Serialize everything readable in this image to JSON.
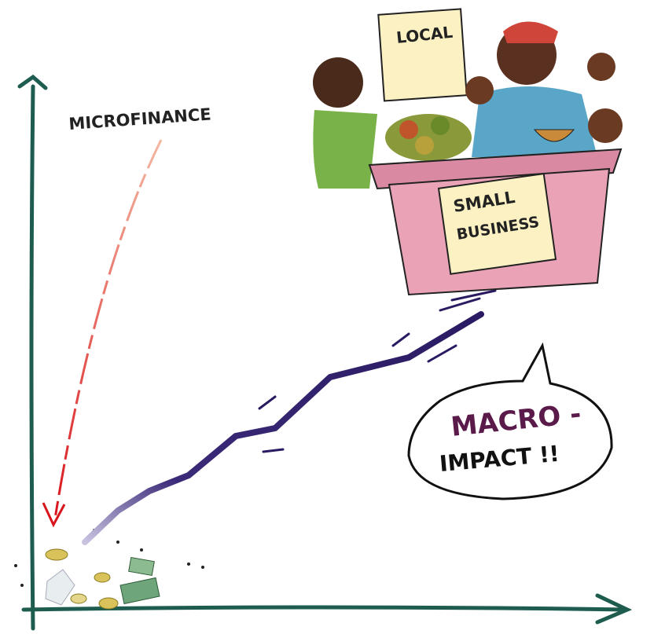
{
  "labels": {
    "arrow": "MICROFINANCE",
    "sign": "LOCAL",
    "stall": [
      "SMALL",
      "BUSINESS"
    ],
    "bubble": [
      "MACRO -",
      "IMPACT !!"
    ]
  }
}
